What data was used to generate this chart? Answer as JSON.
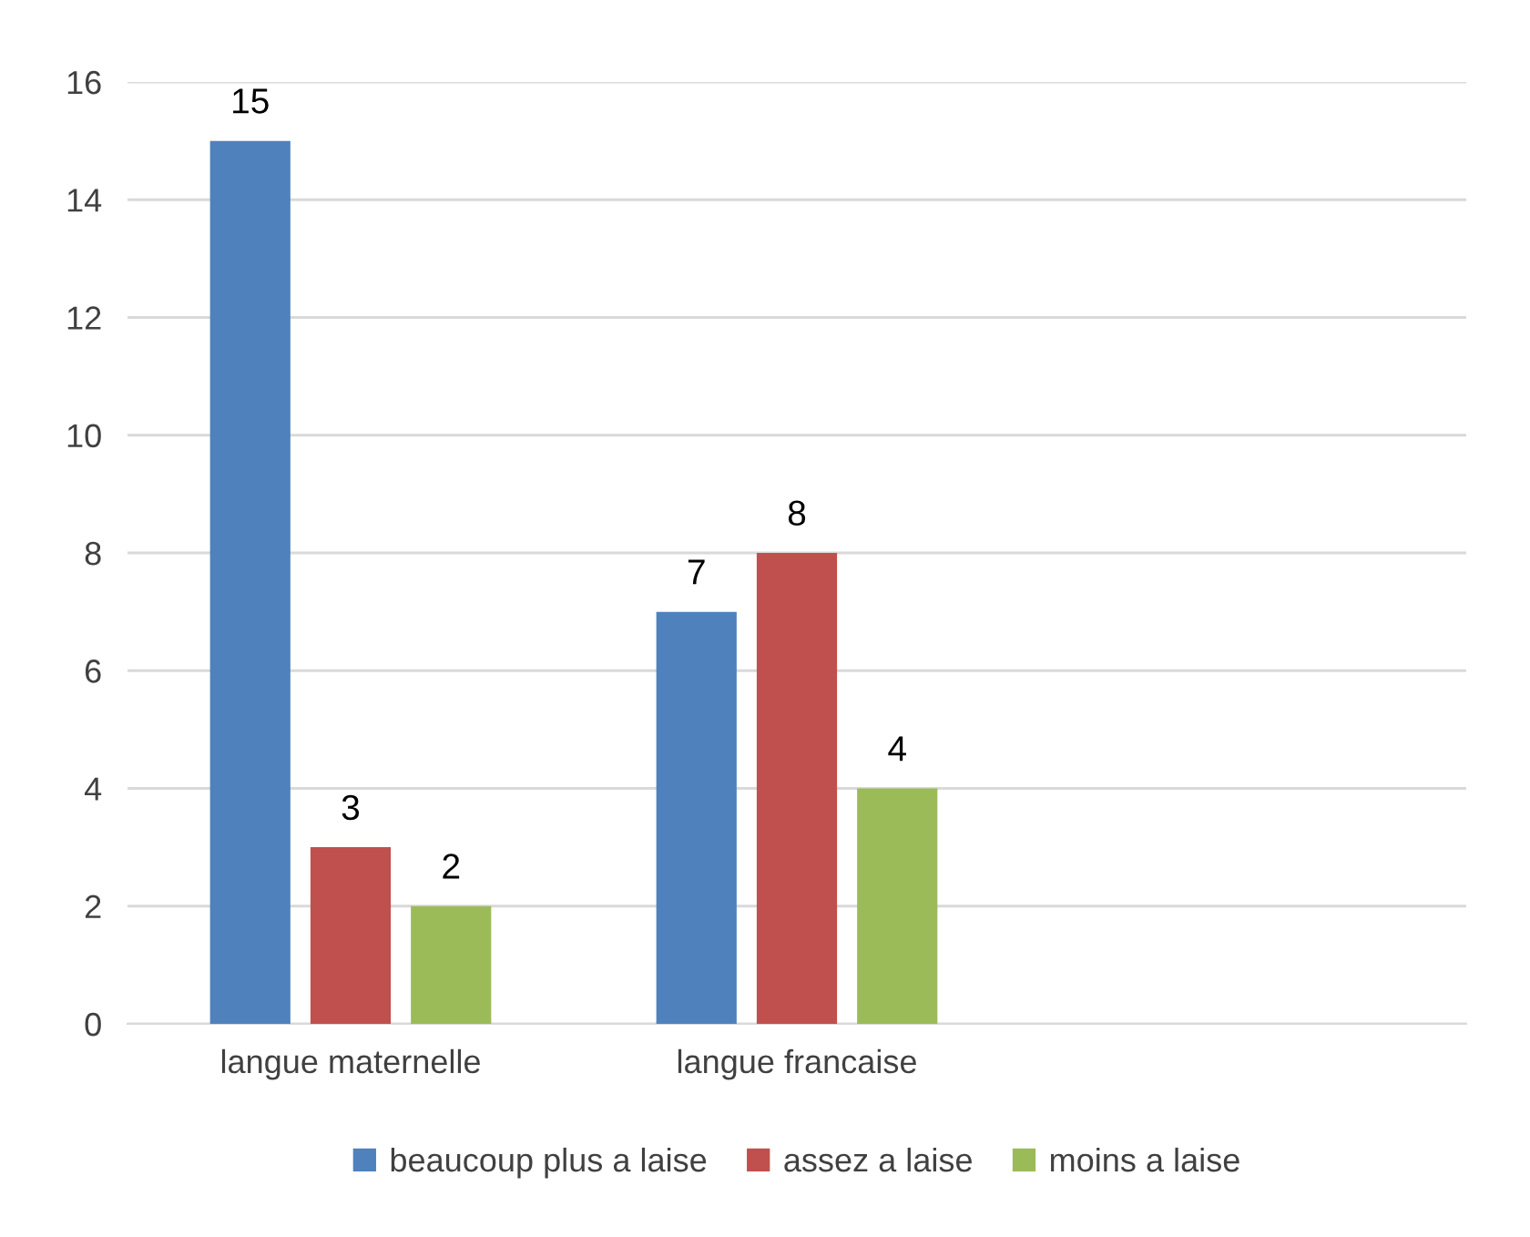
{
  "chart_data": {
    "type": "bar",
    "categories": [
      "langue maternelle",
      "langue francaise",
      null
    ],
    "series": [
      {
        "name": "beaucoup plus a laise",
        "color": "#4f81bd",
        "values": [
          15,
          7,
          null
        ]
      },
      {
        "name": "assez a laise",
        "color": "#c0504d",
        "values": [
          3,
          8,
          null
        ]
      },
      {
        "name": "moins a laise",
        "color": "#9bbb59",
        "values": [
          2,
          4,
          null
        ]
      }
    ],
    "ylim": [
      0,
      16
    ],
    "yticks": [
      0,
      2,
      4,
      6,
      8,
      10,
      12,
      14,
      16
    ],
    "grid": "y",
    "legend": "bottom",
    "data_labels": true
  }
}
